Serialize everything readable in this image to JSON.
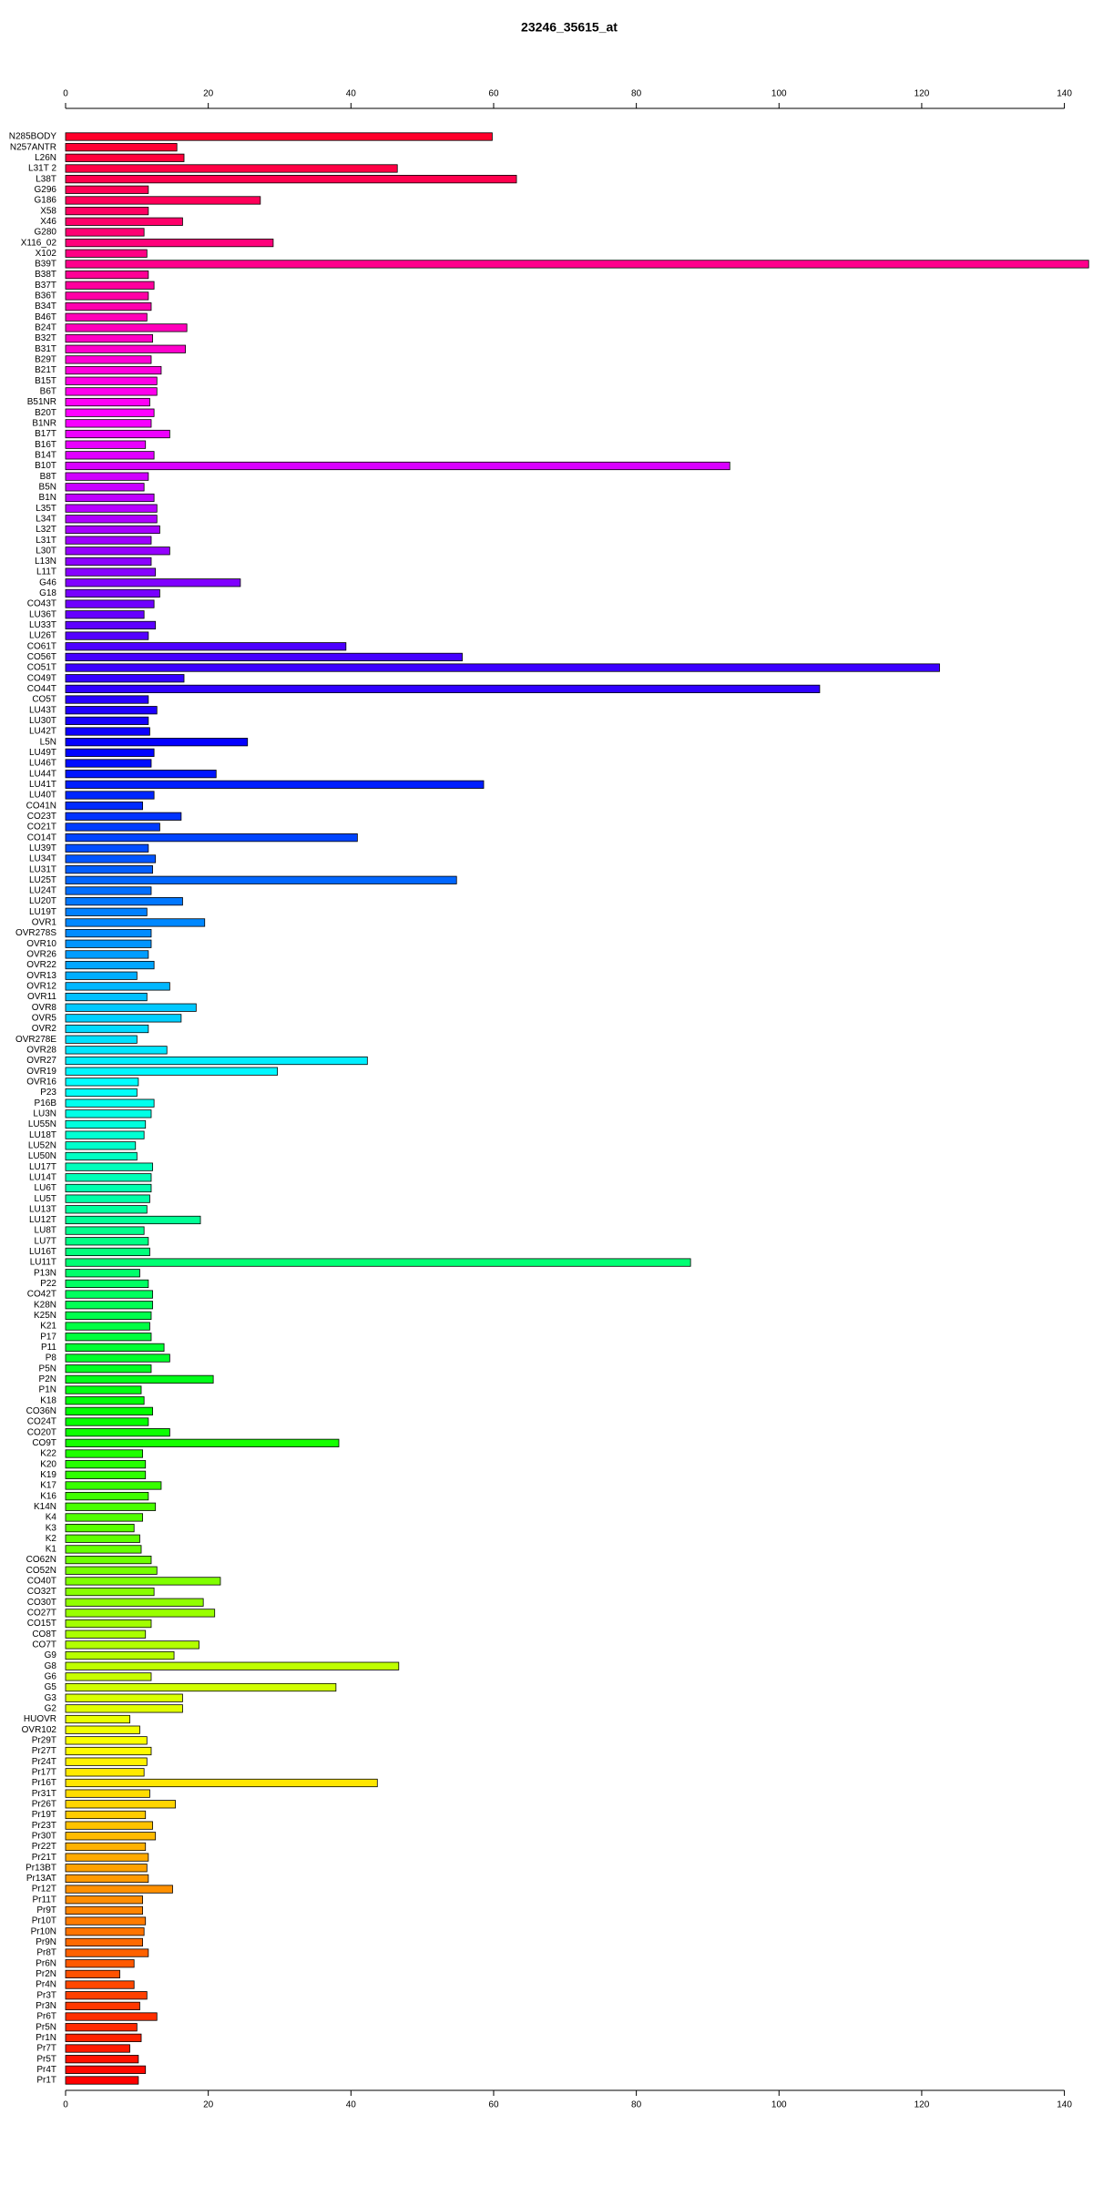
{
  "chart_data": {
    "type": "barh",
    "title": "23246_35615_at",
    "categories": [
      "N285BODY",
      "N257ANTR",
      "L26N",
      "L31T 2",
      "L38T",
      "G296",
      "G186",
      "X58",
      "X46",
      "G280",
      "X116_02",
      "X102",
      "B39T",
      "B38T",
      "B37T",
      "B36T",
      "B34T",
      "B46T",
      "B24T",
      "B32T",
      "B31T",
      "B29T",
      "B21T",
      "B15T",
      "B6T",
      "B51NR",
      "B20T",
      "B1NR",
      "B17T",
      "B16T",
      "B14T",
      "B10T",
      "B8T",
      "B5N",
      "B1N",
      "L35T",
      "L34T",
      "L32T",
      "L31T",
      "L30T",
      "L13N",
      "L11T",
      "G46",
      "G18",
      "CO43T",
      "LU36T",
      "LU33T",
      "LU26T",
      "CO61T",
      "CO56T",
      "CO51T",
      "CO49T",
      "CO44T",
      "CO5T",
      "LU43T",
      "LU30T",
      "LU42T",
      "L5N",
      "LU49T",
      "LU46T",
      "LU44T",
      "LU41T",
      "LU40T",
      "CO41N",
      "CO23T",
      "CO21T",
      "CO14T",
      "LU39T",
      "LU34T",
      "LU31T",
      "LU25T",
      "LU24T",
      "LU20T",
      "LU19T",
      "OVR1",
      "OVR278S",
      "OVR10",
      "OVR26",
      "OVR22",
      "OVR13",
      "OVR12",
      "OVR11",
      "OVR8",
      "OVR5",
      "OVR2",
      "OVR278E",
      "OVR28",
      "OVR27",
      "OVR19",
      "OVR16",
      "P23",
      "P16B",
      "LU3N",
      "LU55N",
      "LU18T",
      "LU52N",
      "LU50N",
      "LU17T",
      "LU14T",
      "LU6T",
      "LU5T",
      "LU13T",
      "LU12T",
      "LU8T",
      "LU7T",
      "LU16T",
      "LU11T",
      "P13N",
      "P22",
      "CO42T",
      "K28N",
      "K25N",
      "K21",
      "P17",
      "P11",
      "P8",
      "P5N",
      "P2N",
      "P1N",
      "K18",
      "CO36N",
      "CO24T",
      "CO20T",
      "CO9T",
      "K22",
      "K20",
      "K19",
      "K17",
      "K16",
      "K14N",
      "K4",
      "K3",
      "K2",
      "K1",
      "CO62N",
      "CO52N",
      "CO40T",
      "CO32T",
      "CO30T",
      "CO27T",
      "CO15T",
      "CO8T",
      "CO7T",
      "G9",
      "G8",
      "G6",
      "G5",
      "G3",
      "G2",
      "HUOVR",
      "OVR102",
      "Pr29T",
      "Pr27T",
      "Pr24T",
      "Pr17T",
      "Pr16T",
      "Pr31T",
      "Pr26T",
      "Pr19T",
      "Pr23T",
      "Pr30T",
      "Pr22T",
      "Pr21T",
      "Pr13BT",
      "Pr13AT",
      "Pr12T",
      "Pr11T",
      "Pr9T",
      "Pr10T",
      "Pr10N",
      "Pr9N",
      "Pr8T",
      "Pr6N",
      "Pr2N",
      "Pr4N",
      "Pr3T",
      "Pr3N",
      "Pr6T",
      "Pr5N",
      "Pr1N",
      "Pr7T",
      "Pr5T",
      "Pr4T",
      "Pr1T"
    ],
    "values": [
      59.8,
      15.6,
      16.6,
      46.5,
      63.2,
      11.6,
      27.3,
      11.6,
      16.4,
      11,
      29.1,
      11.4,
      143.4,
      11.6,
      12.4,
      11.6,
      12,
      11.4,
      17,
      12.2,
      16.8,
      12,
      13.4,
      12.8,
      12.8,
      11.8,
      12.4,
      12,
      14.6,
      11.2,
      12.4,
      93.1,
      11.6,
      11,
      12.4,
      12.8,
      12.8,
      13.2,
      12,
      14.6,
      12,
      12.6,
      24.5,
      13.2,
      12.4,
      11,
      12.6,
      11.6,
      39.3,
      55.6,
      122.5,
      16.6,
      105.7,
      11.6,
      12.8,
      11.6,
      11.8,
      25.5,
      12.4,
      12,
      21.1,
      58.6,
      12.4,
      10.8,
      16.2,
      13.2,
      40.9,
      11.6,
      12.6,
      12.2,
      54.8,
      12,
      16.4,
      11.4,
      19.5,
      12,
      12,
      11.6,
      12.4,
      10,
      14.6,
      11.4,
      18.3,
      16.2,
      11.6,
      10,
      14.2,
      42.3,
      29.7,
      10.2,
      10,
      12.4,
      12,
      11.2,
      11,
      9.8,
      10,
      12.2,
      12,
      12,
      11.8,
      11.4,
      18.9,
      11,
      11.6,
      11.8,
      87.6,
      10.4,
      11.6,
      12.2,
      12.2,
      12,
      11.8,
      12,
      13.8,
      14.6,
      12,
      20.7,
      10.6,
      11,
      12.2,
      11.6,
      14.6,
      38.3,
      10.8,
      11.2,
      11.2,
      13.4,
      11.6,
      12.6,
      10.8,
      9.6,
      10.4,
      10.6,
      12,
      12.8,
      21.7,
      12.4,
      19.3,
      20.9,
      12,
      11.2,
      18.7,
      15.2,
      46.7,
      12,
      37.9,
      16.4,
      16.4,
      9,
      10.4,
      11.4,
      12,
      11.4,
      11,
      43.7,
      11.8,
      15.4,
      11.2,
      12.2,
      12.6,
      11.2,
      11.6,
      11.4,
      11.6,
      15,
      10.8,
      10.8,
      11.2,
      11,
      10.8,
      11.6,
      9.6,
      7.6,
      9.6,
      11.4,
      10.4,
      12.8,
      10,
      10.6,
      9,
      10.2,
      11.2,
      10.2
    ],
    "colors": [
      "hsl(350,100%,50%)",
      "hsl(348,100%,50%)",
      "hsl(346,100%,50%)",
      "hsl(344,100%,50%)",
      "hsl(342,100%,50%)",
      "hsl(340,100%,50%)",
      "hsl(339,100%,50%)",
      "hsl(337,100%,50%)",
      "hsl(335,100%,50%)",
      "hsl(333,100%,50%)",
      "hsl(331,100%,50%)",
      "hsl(329,100%,50%)",
      "hsl(327,100%,50%)",
      "hsl(325,100%,50%)",
      "hsl(323,100%,50%)",
      "hsl(321,100%,50%)",
      "hsl(319,100%,50%)",
      "hsl(317,100%,50%)",
      "hsl(316,100%,50%)",
      "hsl(314,100%,50%)",
      "hsl(312,100%,50%)",
      "hsl(310,100%,50%)",
      "hsl(308,100%,50%)",
      "hsl(306,100%,50%)",
      "hsl(304,100%,50%)",
      "hsl(302,100%,50%)",
      "hsl(300,100%,50%)",
      "hsl(298,100%,50%)",
      "hsl(296,100%,50%)",
      "hsl(295,100%,50%)",
      "hsl(293,100%,50%)",
      "hsl(291,100%,50%)",
      "hsl(289,100%,50%)",
      "hsl(287,100%,50%)",
      "hsl(285,100%,50%)",
      "hsl(283,100%,50%)",
      "hsl(281,100%,50%)",
      "hsl(279,100%,50%)",
      "hsl(277,100%,50%)",
      "hsl(275,100%,50%)",
      "hsl(273,100%,50%)",
      "hsl(272,100%,50%)",
      "hsl(270,100%,50%)",
      "hsl(268,100%,50%)",
      "hsl(266,100%,50%)",
      "hsl(264,100%,50%)",
      "hsl(262,100%,50%)",
      "hsl(260,100%,50%)",
      "hsl(258,100%,50%)",
      "hsl(256,100%,50%)",
      "hsl(254,100%,50%)",
      "hsl(252,100%,50%)",
      "hsl(251,100%,50%)",
      "hsl(249,100%,50%)",
      "hsl(247,100%,50%)",
      "hsl(245,100%,50%)",
      "hsl(243,100%,50%)",
      "hsl(241,100%,50%)",
      "hsl(239,100%,50%)",
      "hsl(237,100%,50%)",
      "hsl(235,100%,50%)",
      "hsl(233,100%,50%)",
      "hsl(231,100%,50%)",
      "hsl(230,100%,50%)",
      "hsl(228,100%,50%)",
      "hsl(226,100%,50%)",
      "hsl(224,100%,50%)",
      "hsl(222,100%,50%)",
      "hsl(220,100%,50%)",
      "hsl(218,100%,50%)",
      "hsl(216,100%,50%)",
      "hsl(214,100%,50%)",
      "hsl(212,100%,50%)",
      "hsl(210,100%,50%)",
      "hsl(208,100%,50%)",
      "hsl(207,100%,50%)",
      "hsl(205,100%,50%)",
      "hsl(203,100%,50%)",
      "hsl(201,100%,50%)",
      "hsl(199,100%,50%)",
      "hsl(197,100%,50%)",
      "hsl(195,100%,50%)",
      "hsl(193,100%,50%)",
      "hsl(191,100%,50%)",
      "hsl(189,100%,50%)",
      "hsl(187,100%,50%)",
      "hsl(186,100%,50%)",
      "hsl(184,100%,50%)",
      "hsl(182,100%,50%)",
      "hsl(180,100%,50%)",
      "hsl(178,100%,50%)",
      "hsl(176,100%,50%)",
      "hsl(174,100%,50%)",
      "hsl(172,100%,50%)",
      "hsl(170,100%,50%)",
      "hsl(168,100%,50%)",
      "hsl(166,100%,50%)",
      "hsl(164,100%,50%)",
      "hsl(163,100%,50%)",
      "hsl(161,100%,50%)",
      "hsl(159,100%,50%)",
      "hsl(157,100%,50%)",
      "hsl(155,100%,50%)",
      "hsl(153,100%,50%)",
      "hsl(151,100%,50%)",
      "hsl(149,100%,50%)",
      "hsl(147,100%,50%)",
      "hsl(145,100%,50%)",
      "hsl(143,100%,50%)",
      "hsl(142,100%,50%)",
      "hsl(140,100%,50%)",
      "hsl(138,100%,50%)",
      "hsl(136,100%,50%)",
      "hsl(134,100%,50%)",
      "hsl(132,100%,50%)",
      "hsl(130,100%,50%)",
      "hsl(128,100%,50%)",
      "hsl(126,100%,50%)",
      "hsl(124,100%,50%)",
      "hsl(122,100%,50%)",
      "hsl(120,100%,50%)",
      "hsl(119,100%,50%)",
      "hsl(117,100%,50%)",
      "hsl(115,100%,50%)",
      "hsl(113,100%,50%)",
      "hsl(111,100%,50%)",
      "hsl(109,100%,50%)",
      "hsl(107,100%,50%)",
      "hsl(105,100%,50%)",
      "hsl(103,100%,50%)",
      "hsl(101,100%,50%)",
      "hsl(99,100%,50%)",
      "hsl(98,100%,50%)",
      "hsl(96,100%,50%)",
      "hsl(94,100%,50%)",
      "hsl(92,100%,50%)",
      "hsl(90,100%,50%)",
      "hsl(88,100%,50%)",
      "hsl(86,100%,50%)",
      "hsl(84,100%,50%)",
      "hsl(82,100%,50%)",
      "hsl(80,100%,50%)",
      "hsl(78,100%,50%)",
      "hsl(77,100%,50%)",
      "hsl(75,100%,50%)",
      "hsl(73,100%,50%)",
      "hsl(71,100%,50%)",
      "hsl(69,100%,50%)",
      "hsl(67,100%,50%)",
      "hsl(65,100%,50%)",
      "hsl(63,100%,50%)",
      "hsl(61,100%,50%)",
      "hsl(59,100%,50%)",
      "hsl(57,100%,50%)",
      "hsl(55,100%,50%)",
      "hsl(54,100%,50%)",
      "hsl(52,100%,50%)",
      "hsl(50,100%,50%)",
      "hsl(48,100%,50%)",
      "hsl(46,100%,50%)",
      "hsl(44,100%,50%)",
      "hsl(42,100%,50%)",
      "hsl(40,100%,50%)",
      "hsl(38,100%,50%)",
      "hsl(36,100%,50%)",
      "hsl(34,100%,50%)",
      "hsl(33,100%,50%)",
      "hsl(31,100%,50%)",
      "hsl(29,100%,50%)",
      "hsl(27,100%,50%)",
      "hsl(25,100%,50%)",
      "hsl(23,100%,50%)",
      "hsl(21,100%,50%)",
      "hsl(19,100%,50%)",
      "hsl(17,100%,50%)",
      "hsl(15,100%,50%)",
      "hsl(13,100%,50%)",
      "hsl(11,100%,50%)",
      "hsl(10,100%,50%)",
      "hsl(8,100%,50%)",
      "hsl(6,100%,50%)",
      "hsl(4,100%,50%)",
      "hsl(2,100%,50%)",
      "hsl(0,100%,50%)"
    ],
    "xlim": [
      0,
      143.5
    ],
    "xticks": [
      0,
      20,
      40,
      60,
      80,
      100,
      120,
      140
    ]
  }
}
